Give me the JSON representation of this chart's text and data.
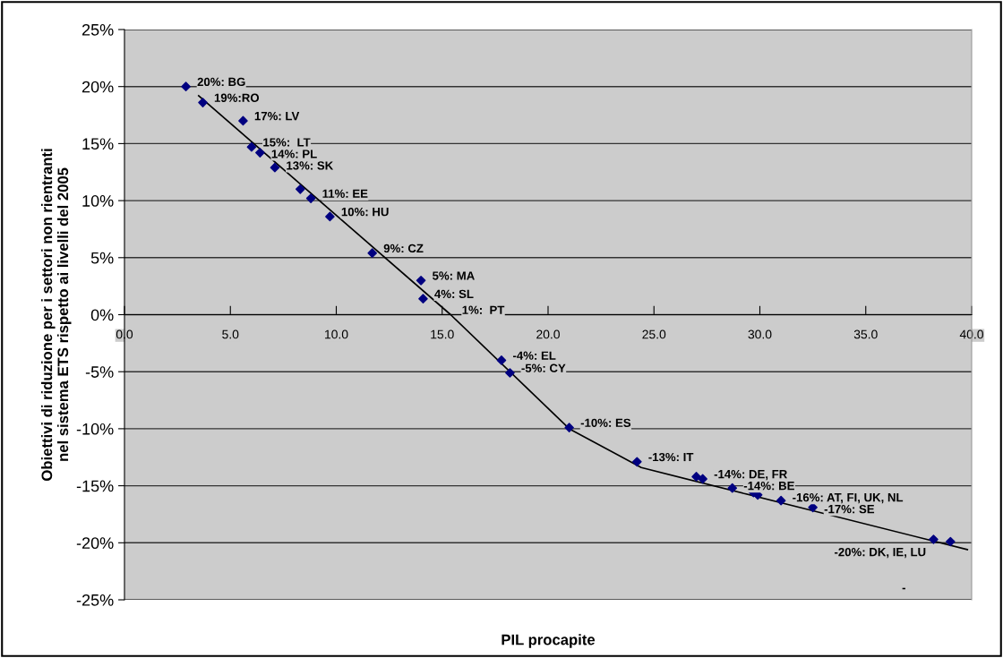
{
  "chart_data": {
    "type": "scatter",
    "xlabel": "PIL procapite",
    "ylabel": "Obiettivi di riduzione per i settori non rientranti\nnel sistema ETS rispetto ai livelli del 2005",
    "xlim": [
      0,
      40
    ],
    "xticks": [
      {
        "value": 0,
        "label": "0.0"
      },
      {
        "value": 5,
        "label": "5.0"
      },
      {
        "value": 10,
        "label": "10.0"
      },
      {
        "value": 15,
        "label": "15.0"
      },
      {
        "value": 20,
        "label": "20.0"
      },
      {
        "value": 25,
        "label": "25.0"
      },
      {
        "value": 30,
        "label": "30.0"
      },
      {
        "value": 35,
        "label": "35.0"
      },
      {
        "value": 40,
        "label": "40.0"
      }
    ],
    "ylim": [
      -25,
      25
    ],
    "yticks": [
      {
        "value": -25,
        "label": "-25%"
      },
      {
        "value": -20,
        "label": "-20%"
      },
      {
        "value": -15,
        "label": "-15%"
      },
      {
        "value": -10,
        "label": "-10%"
      },
      {
        "value": -5,
        "label": "-5%"
      },
      {
        "value": 0,
        "label": "0%"
      },
      {
        "value": 5,
        "label": "5%"
      },
      {
        "value": 10,
        "label": "10%"
      },
      {
        "value": 15,
        "label": "15%"
      },
      {
        "value": 20,
        "label": "20%"
      },
      {
        "value": 25,
        "label": "25%"
      }
    ],
    "grid": "y",
    "series": [
      {
        "marker": "diamond",
        "color": "#000080",
        "x": [
          2.9,
          3.7,
          5.6,
          6.0,
          6.4,
          7.1,
          8.3,
          8.8,
          9.7,
          11.7,
          14.0,
          14.1,
          17.8,
          18.2,
          21.0,
          24.2,
          27.0,
          27.3,
          28.7,
          29.7,
          29.9,
          31.0,
          32.5,
          38.2,
          39.0
        ],
        "values": [
          20.0,
          18.6,
          17.0,
          14.7,
          14.2,
          12.9,
          11.0,
          10.2,
          8.6,
          5.4,
          3.0,
          1.4,
          -4.0,
          -5.1,
          -9.9,
          -12.9,
          -14.2,
          -14.4,
          -15.2,
          -15.6,
          -15.8,
          -16.3,
          -16.9,
          -19.7,
          -19.9
        ]
      },
      {
        "type": "line",
        "color": "#000000",
        "x": [
          3.5,
          15.4,
          21.0,
          24.4,
          39.8
        ],
        "values": [
          19.2,
          0.0,
          -10.0,
          -13.4,
          -20.6
        ]
      }
    ],
    "annotations": [
      {
        "text": "20%: BG",
        "x": 2.9,
        "y": 20.0
      },
      {
        "text": "19%:RO",
        "x": 3.7,
        "y": 18.6
      },
      {
        "text": "17%: LV",
        "x": 5.6,
        "y": 17.0
      },
      {
        "text": "15%:  LT",
        "x": 6.0,
        "y": 14.7
      },
      {
        "text": "14%: PL",
        "x": 6.4,
        "y": 14.2
      },
      {
        "text": "13%: SK",
        "x": 7.1,
        "y": 12.9
      },
      {
        "text": "11%: EE",
        "x": 8.8,
        "y": 10.2
      },
      {
        "text": "10%: HU",
        "x": 9.7,
        "y": 8.6
      },
      {
        "text": "9%: CZ",
        "x": 11.7,
        "y": 5.4
      },
      {
        "text": "5%: MA",
        "x": 14.0,
        "y": 3.0
      },
      {
        "text": "4%: SL",
        "x": 14.1,
        "y": 1.4
      },
      {
        "text": "1%:  PT",
        "x": 15.4,
        "y": 0.0
      },
      {
        "text": "-4%: EL",
        "x": 17.8,
        "y": -4.0
      },
      {
        "text": "-5%: CY",
        "x": 18.2,
        "y": -5.1
      },
      {
        "text": "-10%: ES",
        "x": 21.0,
        "y": -9.9
      },
      {
        "text": "-13%: IT",
        "x": 24.2,
        "y": -12.9
      },
      {
        "text": "-14%: DE, FR",
        "x": 27.3,
        "y": -14.4
      },
      {
        "text": "-14%: BE",
        "x": 28.7,
        "y": -15.2
      },
      {
        "text": "-16%: AT, FI, UK, NL",
        "x": 31.0,
        "y": -16.3
      },
      {
        "text": "-17%: SE",
        "x": 32.5,
        "y": -16.9
      },
      {
        "text": "-20%: DK, IE, LU",
        "x": 38.2,
        "y": -19.7
      },
      "-"
    ]
  }
}
